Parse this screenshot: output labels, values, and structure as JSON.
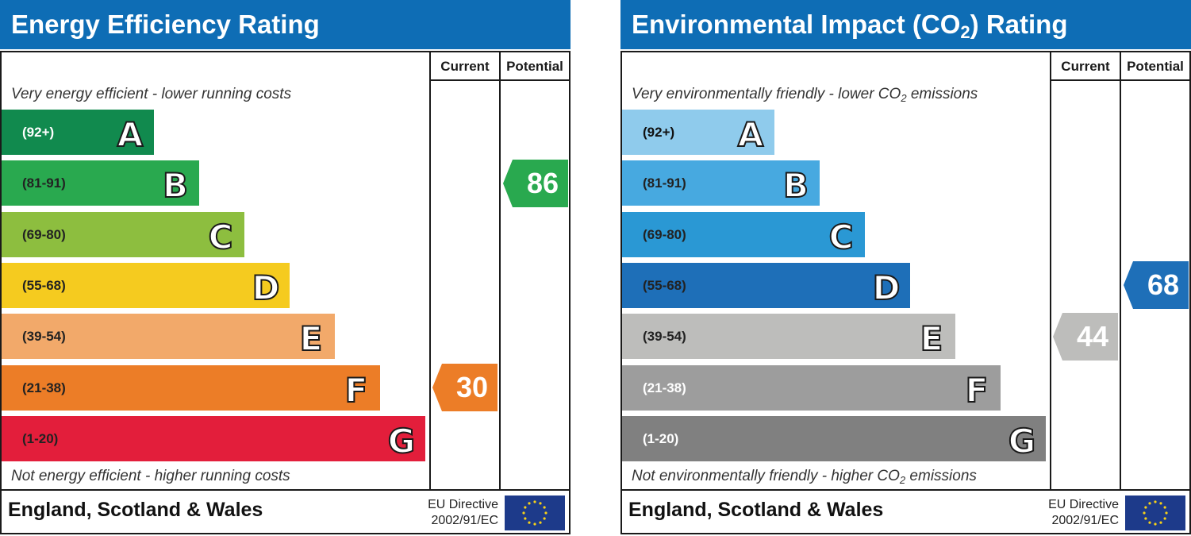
{
  "chart_data": [
    {
      "type": "bar",
      "title": "Energy Efficiency Rating",
      "top_note": "Very energy efficient - lower running costs",
      "bottom_note": "Not energy efficient - higher running costs",
      "columns": [
        "Current",
        "Potential"
      ],
      "categories": [
        "A",
        "B",
        "C",
        "D",
        "E",
        "F",
        "G"
      ],
      "ranges": [
        "(92+)",
        "(81-91)",
        "(69-80)",
        "(55-68)",
        "(39-54)",
        "(21-38)",
        "(1-20)"
      ],
      "colors": [
        "#118a4e",
        "#29a94f",
        "#8dbe3f",
        "#f5cb1f",
        "#f2a96a",
        "#ec7d27",
        "#e31e3b"
      ],
      "range_text_colors": [
        "#ffffff",
        "#222222",
        "#222222",
        "#222222",
        "#222222",
        "#222222",
        "#222222"
      ],
      "current": {
        "value": "30",
        "band": "F",
        "color": "#ec7d27"
      },
      "potential": {
        "value": "86",
        "band": "B",
        "color": "#29a94f"
      }
    },
    {
      "type": "bar",
      "title_main": "Environmental Impact (CO",
      "title_sub": "2",
      "title_end": ") Rating",
      "top_note_main": "Very environmentally friendly - lower CO",
      "top_note_sub": "2",
      "top_note_end": " emissions",
      "bottom_note_main": "Not environmentally friendly - higher CO",
      "bottom_note_sub": "2",
      "bottom_note_end": " emissions",
      "columns": [
        "Current",
        "Potential"
      ],
      "categories": [
        "A",
        "B",
        "C",
        "D",
        "E",
        "F",
        "G"
      ],
      "ranges": [
        "(92+)",
        "(81-91)",
        "(69-80)",
        "(55-68)",
        "(39-54)",
        "(21-38)",
        "(1-20)"
      ],
      "colors": [
        "#8fcbec",
        "#47a9e0",
        "#2a98d4",
        "#1e6fb8",
        "#bdbdbb",
        "#9d9d9d",
        "#808080"
      ],
      "range_text_colors": [
        "#111111",
        "#222222",
        "#222222",
        "#222222",
        "#222222",
        "#ffffff",
        "#ffffff"
      ],
      "current": {
        "value": "44",
        "band": "E",
        "color": "#bdbdbb"
      },
      "potential": {
        "value": "68",
        "band": "D",
        "color": "#1e6fb8"
      }
    }
  ],
  "footer": {
    "region": "England, Scotland & Wales",
    "directive_line1": "EU Directive",
    "directive_line2": "2002/91/EC"
  }
}
